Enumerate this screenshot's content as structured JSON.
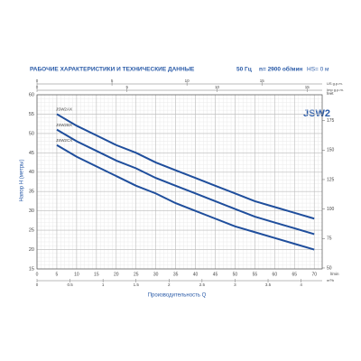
{
  "chart_data": {
    "type": "line",
    "title": "РАБОЧИЕ ХАРАКТЕРИСТИКИ И ТЕХНИЧЕСКИЕ ДАННЫЕ",
    "frequency": "50 Гц",
    "speed": "n= 2900 об/мин",
    "suction": "HS= 0 м",
    "logo": "JSW2",
    "xlabel": "Производительность Q",
    "xunit": "l/min",
    "ylabel": "Напор H (метры)",
    "y2label": "feet",
    "x": [
      5,
      10,
      15,
      20,
      25,
      30,
      35,
      40,
      45,
      50,
      55,
      60,
      65,
      70
    ],
    "xlim": [
      0,
      72
    ],
    "xticks": [
      0,
      5,
      10,
      15,
      20,
      25,
      30,
      35,
      40,
      45,
      50,
      55,
      60,
      65,
      70
    ],
    "ylim": [
      15,
      60
    ],
    "yticks": [
      15,
      20,
      25,
      30,
      35,
      40,
      45,
      50,
      55,
      60
    ],
    "y2lim": [
      49.2,
      196.9
    ],
    "y2ticks": [
      50,
      75,
      100,
      125,
      150,
      175
    ],
    "top_axes": [
      {
        "label": "US g.p.m.",
        "lim": [
          0,
          19.02
        ],
        "ticks": [
          0,
          5,
          10,
          15
        ]
      },
      {
        "label": "Imp g.p.m.",
        "lim": [
          0,
          15.84
        ],
        "ticks": [
          0,
          5,
          10,
          15
        ]
      }
    ],
    "bottom_axis2": {
      "label": "m³/h",
      "lim": [
        0,
        4.32
      ],
      "ticks": [
        0,
        0.5,
        1,
        1.5,
        2,
        2.5,
        3,
        3.5,
        4
      ]
    },
    "grid": true,
    "series": [
      {
        "name": "JSW2AX",
        "color": "#1f4e9c",
        "values": [
          55,
          52,
          49.5,
          47,
          45,
          42.5,
          40.5,
          38.5,
          36.5,
          34.5,
          32.5,
          31,
          29.5,
          28
        ]
      },
      {
        "name": "JSW2BX",
        "color": "#1f4e9c",
        "values": [
          51,
          48,
          45.5,
          43,
          41,
          38.5,
          36.5,
          34.5,
          32.5,
          30.5,
          28.5,
          27,
          25.5,
          24
        ]
      },
      {
        "name": "JSW2CX",
        "color": "#1f4e9c",
        "values": [
          47,
          44,
          41.5,
          39,
          36.5,
          34.5,
          32,
          30,
          28,
          26,
          24.5,
          23,
          21.5,
          20
        ]
      }
    ]
  }
}
